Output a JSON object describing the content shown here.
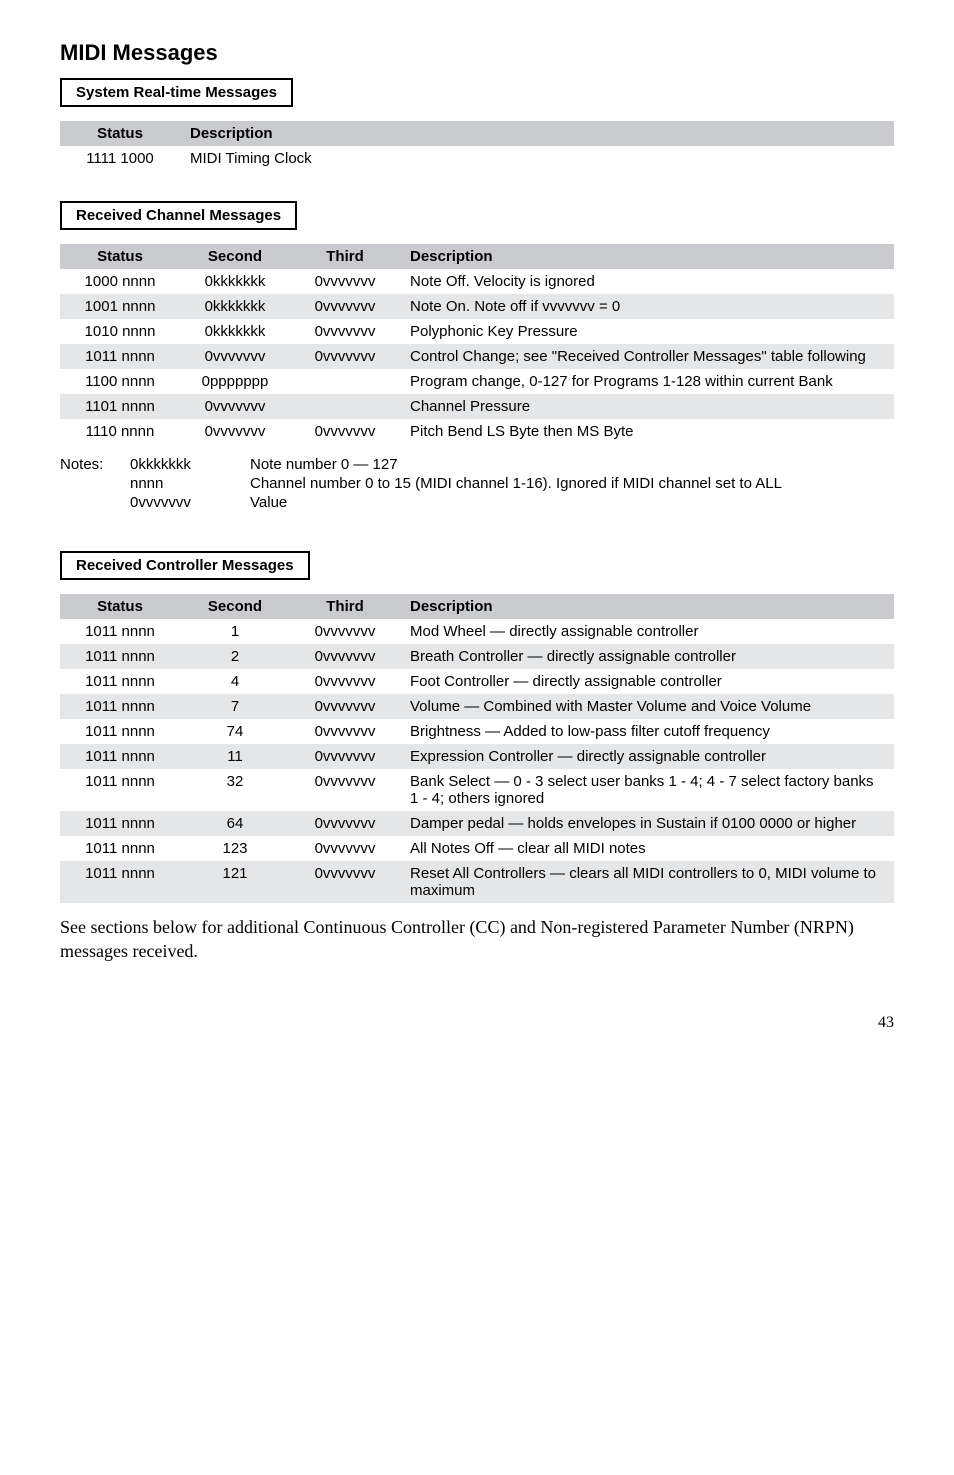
{
  "title": "MIDI Messages",
  "section1": {
    "header": "System Real-time Messages",
    "columns": [
      "Status",
      "Description"
    ],
    "rows": [
      {
        "status": "1111 1000",
        "desc": "MIDI Timing Clock"
      }
    ]
  },
  "section2": {
    "header": "Received Channel Messages",
    "columns": [
      "Status",
      "Second",
      "Third",
      "Description"
    ],
    "rows": [
      {
        "status": "1000 nnnn",
        "second": "0kkkkkkk",
        "third": "0vvvvvvv",
        "desc": "Note Off. Velocity is ignored"
      },
      {
        "status": "1001 nnnn",
        "second": "0kkkkkkk",
        "third": "0vvvvvvv",
        "desc": "Note On. Note off if vvvvvvv = 0"
      },
      {
        "status": "1010 nnnn",
        "second": "0kkkkkkk",
        "third": "0vvvvvvv",
        "desc": "Polyphonic Key Pressure"
      },
      {
        "status": "1011 nnnn",
        "second": "0vvvvvvv",
        "third": "0vvvvvvv",
        "desc": "Control Change; see \"Received Controller Messages\" table following"
      },
      {
        "status": "1100 nnnn",
        "second": "0ppppppp",
        "third": "",
        "desc": "Program change, 0-127 for Programs 1-128 within current Bank"
      },
      {
        "status": "1101 nnnn",
        "second": "0vvvvvvv",
        "third": "",
        "desc": "Channel Pressure"
      },
      {
        "status": "1110 nnnn",
        "second": "0vvvvvvv",
        "third": "0vvvvvvv",
        "desc": "Pitch Bend LS Byte then MS Byte"
      }
    ],
    "notes": {
      "label": "Notes:",
      "items": [
        {
          "code": "0kkkkkkk",
          "desc": "Note number 0 — 127"
        },
        {
          "code": "nnnn",
          "desc": "Channel number 0 to 15 (MIDI channel 1-16). Ignored if MIDI channel set to ALL"
        },
        {
          "code": "0vvvvvvv",
          "desc": "Value"
        }
      ]
    }
  },
  "section3": {
    "header": "Received Controller Messages",
    "columns": [
      "Status",
      "Second",
      "Third",
      "Description"
    ],
    "rows": [
      {
        "status": "1011 nnnn",
        "second": "1",
        "third": "0vvvvvvv",
        "desc": "Mod Wheel — directly assignable controller"
      },
      {
        "status": "1011 nnnn",
        "second": "2",
        "third": "0vvvvvvv",
        "desc": "Breath Controller — directly assignable controller"
      },
      {
        "status": "1011 nnnn",
        "second": "4",
        "third": "0vvvvvvv",
        "desc": "Foot Controller — directly assignable controller"
      },
      {
        "status": "1011 nnnn",
        "second": "7",
        "third": "0vvvvvvv",
        "desc": "Volume — Combined with Master Volume and Voice Volume"
      },
      {
        "status": "1011 nnnn",
        "second": "74",
        "third": "0vvvvvvv",
        "desc": "Brightness — Added to low-pass filter cutoff frequency"
      },
      {
        "status": "1011 nnnn",
        "second": "11",
        "third": "0vvvvvvv",
        "desc": "Expression Controller — directly assignable controller"
      },
      {
        "status": "1011 nnnn",
        "second": "32",
        "third": "0vvvvvvv",
        "desc": "Bank Select — 0 - 3 select user banks 1 - 4; 4 - 7 select factory banks 1 - 4; others ignored"
      },
      {
        "status": "1011 nnnn",
        "second": "64",
        "third": "0vvvvvvv",
        "desc": "Damper pedal — holds envelopes in Sustain if 0100 0000 or higher"
      },
      {
        "status": "1011 nnnn",
        "second": "123",
        "third": "0vvvvvvv",
        "desc": "All Notes Off — clear all MIDI notes"
      },
      {
        "status": "1011 nnnn",
        "second": "121",
        "third": "0vvvvvvv",
        "desc": "Reset All Controllers — clears all MIDI controllers to 0, MIDI volume to maximum"
      }
    ]
  },
  "footerText": "See sections below for additional Continuous Controller (CC) and Non-registered Parameter Number (NRPN) messages received.",
  "pageNumber": "43"
}
